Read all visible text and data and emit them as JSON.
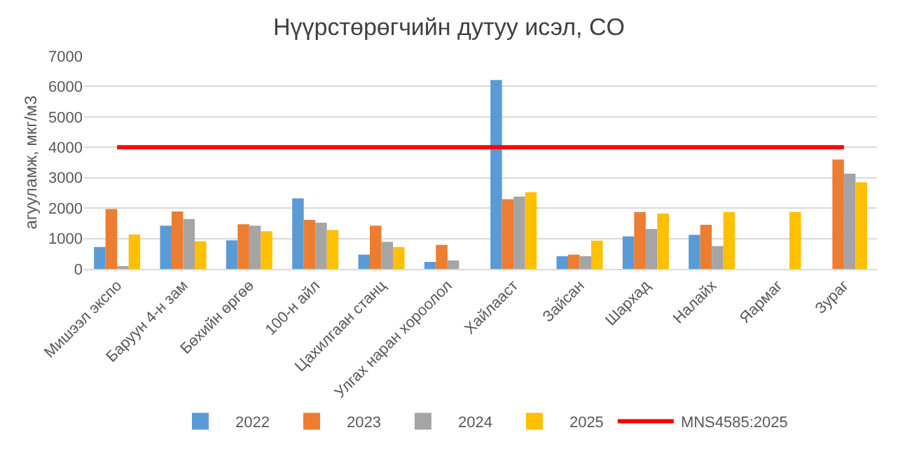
{
  "chart_data": {
    "type": "bar",
    "title": "Нүүрстөрөгчийн дутуу исэл, CO",
    "ylabel": "агууламж, мкг/м3",
    "categories": [
      "Мишээл экспо",
      "Баруун 4-н зам",
      "Бөхийн өргөө",
      "100-н айл",
      "Цахилгаан станц",
      "Улгах наран хороолол",
      "Хайлааст",
      "Зайсан",
      "Шархад",
      "Налайх",
      "Яармаг",
      "Зураг"
    ],
    "series": [
      {
        "name": "2022",
        "color": "#5b9bd5",
        "values": [
          720,
          1420,
          940,
          2320,
          470,
          230,
          6210,
          420,
          1070,
          1120,
          null,
          null
        ]
      },
      {
        "name": "2023",
        "color": "#ed7d31",
        "values": [
          1970,
          1890,
          1470,
          1610,
          1420,
          790,
          2290,
          470,
          1870,
          1450,
          null,
          3600
        ]
      },
      {
        "name": "2024",
        "color": "#a5a5a5",
        "values": [
          60,
          1640,
          1420,
          1520,
          890,
          280,
          2380,
          420,
          1310,
          750,
          null,
          3130
        ]
      },
      {
        "name": "2025",
        "color": "#ffc000",
        "values": [
          1130,
          910,
          1240,
          1280,
          720,
          null,
          2520,
          930,
          1820,
          1870,
          1870,
          2850
        ]
      },
      {
        "name": "MNS4585:2025",
        "color": "#ff0000",
        "type": "line",
        "values": [
          4000,
          4000,
          4000,
          4000,
          4000,
          4000,
          4000,
          4000,
          4000,
          4000,
          4000,
          4000
        ]
      }
    ],
    "ylim": [
      0,
      7000
    ],
    "yticks": [
      0,
      1000,
      2000,
      3000,
      4000,
      5000,
      6000,
      7000
    ],
    "grid": "y",
    "legend": "bottom",
    "marker": "none",
    "line_style": "solid"
  }
}
